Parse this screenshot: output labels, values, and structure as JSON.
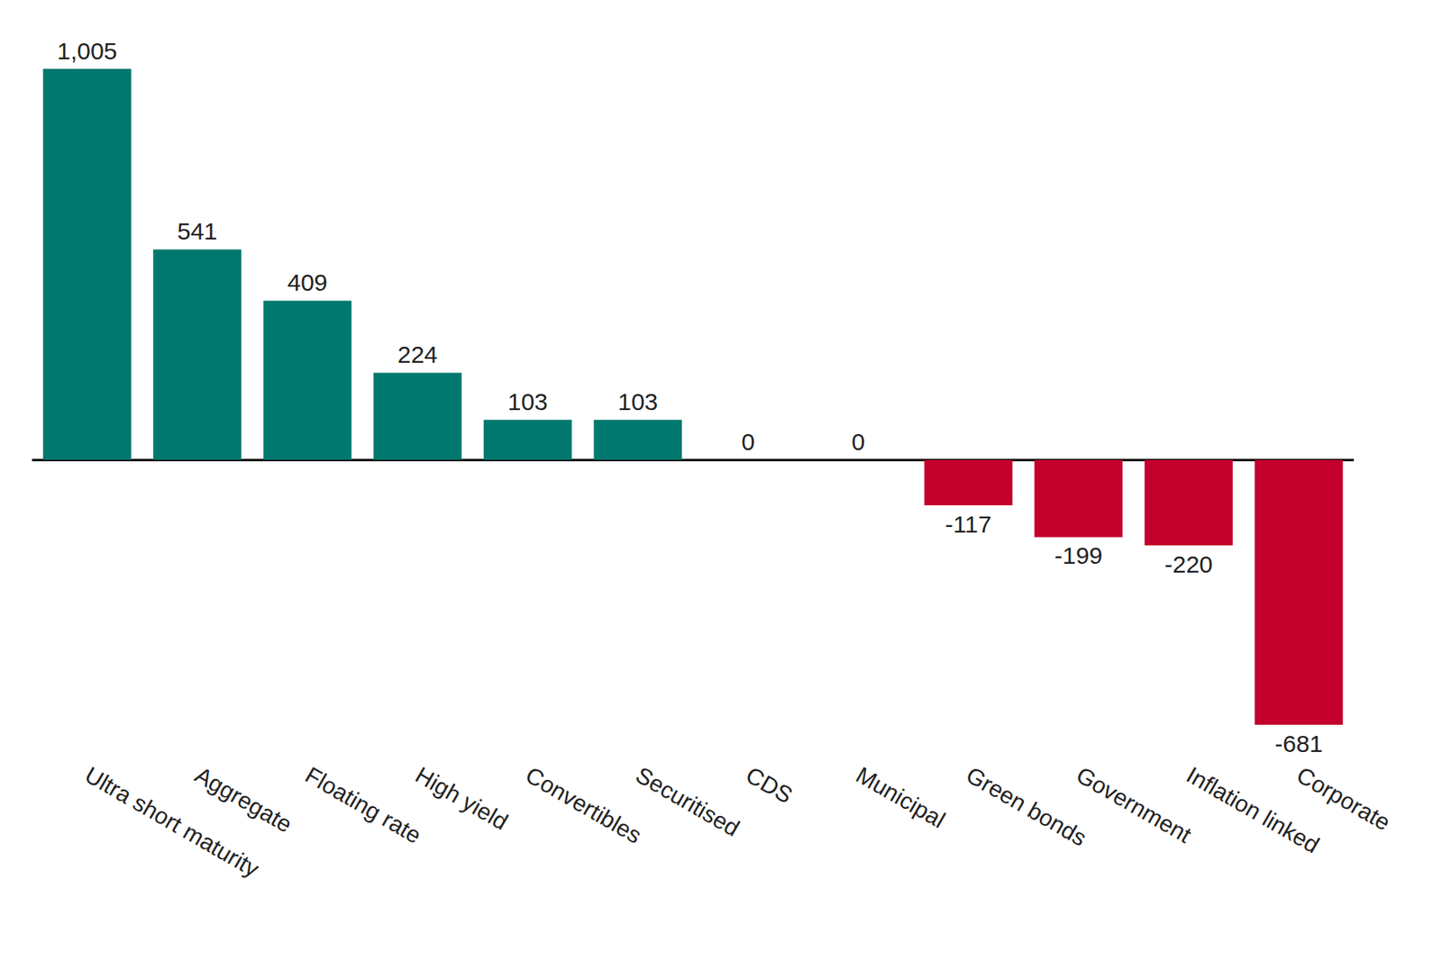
{
  "chart_data": {
    "type": "bar",
    "categories": [
      "Ultra short maturity",
      "Aggregate",
      "Floating rate",
      "High yield",
      "Convertibles",
      "Securitised",
      "CDS",
      "Municipal",
      "Green bonds",
      "Government",
      "Inflation linked",
      "Corporate"
    ],
    "values": [
      1005,
      541,
      409,
      224,
      103,
      103,
      0,
      0,
      -117,
      -199,
      -220,
      -681
    ],
    "value_labels": [
      "1,005",
      "541",
      "409",
      "224",
      "103",
      "103",
      "0",
      "0",
      "-117",
      "-199",
      "-220",
      "-681"
    ],
    "colors": [
      "#00786e",
      "#00786e",
      "#00786e",
      "#00786e",
      "#00786e",
      "#00786e",
      "#00786e",
      "#00786e",
      "#c4002c",
      "#c4002c",
      "#c4002c",
      "#c4002c"
    ],
    "ylim": [
      -681,
      1005
    ],
    "yticks": [
      0
    ],
    "grid": true,
    "data_labels": true,
    "tick_labels": "x"
  }
}
